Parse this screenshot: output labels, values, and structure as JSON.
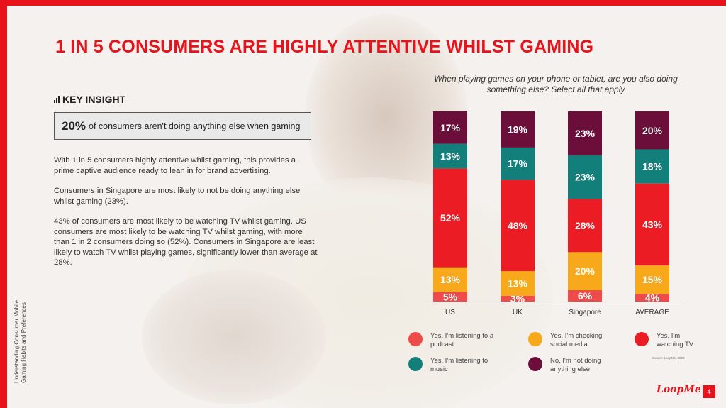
{
  "header": {
    "title": "1 IN 5 CONSUMERS ARE HIGHLY ATTENTIVE WHILST GAMING"
  },
  "insight": {
    "heading": "KEY INSIGHT",
    "callout_value": "20%",
    "callout_text": "of consumers aren't doing anything else when gaming"
  },
  "paragraphs": [
    "With 1 in 5 consumers highly attentive whilst gaming, this provides a prime captive audience ready to lean in for brand advertising.",
    "Consumers in Singapore are most likely to not be doing anything else whilst gaming (23%).",
    "43% of consumers are most likely to be watching TV whilst gaming. US consumers are most likely to be watching TV whilst gaming, with more than 1 in 2 consumers doing so (52%). Consumers in Singapore are least likely to watch TV whilst playing games, significantly lower than average at 28%."
  ],
  "side_label": "Understanding Consumer Mobile Gaming Habits and Preferences",
  "chart_question": "When playing games on your phone or tablet, are you also doing something else? Select all that apply",
  "chart_data": {
    "type": "bar",
    "stacked": true,
    "categories": [
      "US",
      "UK",
      "Singapore",
      "AVERAGE"
    ],
    "series": [
      {
        "name": "Yes, I'm listening to a podcast",
        "values": [
          5,
          3,
          6,
          4
        ],
        "color": "#f04b4b"
      },
      {
        "name": "Yes, I'm checking social media",
        "values": [
          13,
          13,
          20,
          15
        ],
        "color": "#f7a81b"
      },
      {
        "name": "Yes, I'm watching TV",
        "values": [
          52,
          48,
          28,
          43
        ],
        "color": "#ec1c24"
      },
      {
        "name": "Yes, I'm listening to music",
        "values": [
          13,
          17,
          23,
          18
        ],
        "color": "#137f7a"
      },
      {
        "name": "No, I'm not doing anything else",
        "values": [
          17,
          19,
          23,
          20
        ],
        "color": "#6b0f3a"
      }
    ],
    "value_suffix": "%",
    "legend": "bottom"
  },
  "source": "Source: LoopMe, 2022",
  "logo": "LoopMe",
  "page_number": "4",
  "colors": {
    "brand_red": "#e8121a"
  }
}
